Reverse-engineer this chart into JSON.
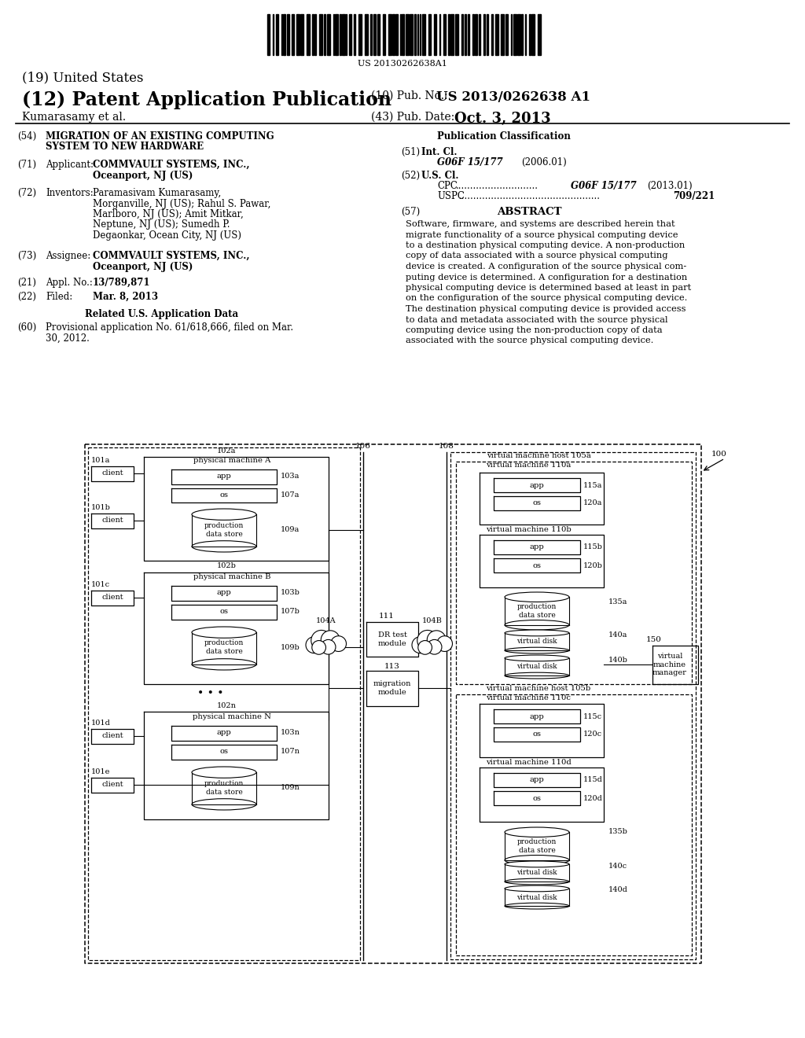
{
  "bg_color": "#ffffff",
  "barcode_text": "US 20130262638A1",
  "title19": "(19) United States",
  "title12": "(12) Patent Application Publication",
  "pub_no_label": "(10) Pub. No.:",
  "pub_no_value": "US 2013/0262638 A1",
  "author_line": "Kumarasamy et al.",
  "pub_date_label": "(43) Pub. Date:",
  "pub_date_value": "Oct. 3, 2013",
  "field54_label": "(54)",
  "field54_text_l1": "MIGRATION OF AN EXISTING COMPUTING",
  "field54_text_l2": "SYSTEM TO NEW HARDWARE",
  "field71_label": "(71)",
  "field71_title": "Applicant:",
  "field71_text_l1": "COMMVAULT SYSTEMS, INC.,",
  "field71_text_l2": "Oceanport, NJ (US)",
  "field72_label": "(72)",
  "field72_title": "Inventors:",
  "field72_text_l1": "Paramasivam Kumarasamy,",
  "field72_text_l2": "Morganville, NJ (US); Rahul S. Pawar,",
  "field72_text_l3": "Marlboro, NJ (US); Amit Mitkar,",
  "field72_text_l4": "Neptune, NJ (US); Sumedh P.",
  "field72_text_l5": "Degaonkar, Ocean City, NJ (US)",
  "field73_label": "(73)",
  "field73_title": "Assignee:",
  "field73_text_l1": "COMMVAULT SYSTEMS, INC.,",
  "field73_text_l2": "Oceanport, NJ (US)",
  "field21_label": "(21)",
  "field21_title": "Appl. No.:",
  "field21_text": "13/789,871",
  "field22_label": "(22)",
  "field22_title": "Filed:",
  "field22_text": "Mar. 8, 2013",
  "related_title": "Related U.S. Application Data",
  "field60_label": "(60)",
  "field60_text_l1": "Provisional application No. 61/618,666, filed on Mar.",
  "field60_text_l2": "30, 2012.",
  "pub_class_title": "Publication Classification",
  "field51_label": "(51)",
  "field51_title": "Int. Cl.",
  "field51_class": "G06F 15/177",
  "field51_year": "(2006.01)",
  "field52_label": "(52)",
  "field52_title": "U.S. Cl.",
  "field52_cpc_label": "CPC",
  "field52_cpc_dots": "............................",
  "field52_cpc_value": "G06F 15/177",
  "field52_cpc_year": "(2013.01)",
  "field52_uspc_label": "USPC",
  "field52_uspc_dots": "................................................",
  "field52_uspc_value": "709/221",
  "field57_label": "(57)",
  "field57_title": "ABSTRACT",
  "abstract_lines": [
    "Software, firmware, and systems are described herein that",
    "migrate functionality of a source physical computing device",
    "to a destination physical computing device. A non-production",
    "copy of data associated with a source physical computing",
    "device is created. A configuration of the source physical com-",
    "puting device is determined. A configuration for a destination",
    "physical computing device is determined based at least in part",
    "on the configuration of the source physical computing device.",
    "The destination physical computing device is provided access",
    "to data and metadata associated with the source physical",
    "computing device using the non-production copy of data",
    "associated with the source physical computing device."
  ]
}
